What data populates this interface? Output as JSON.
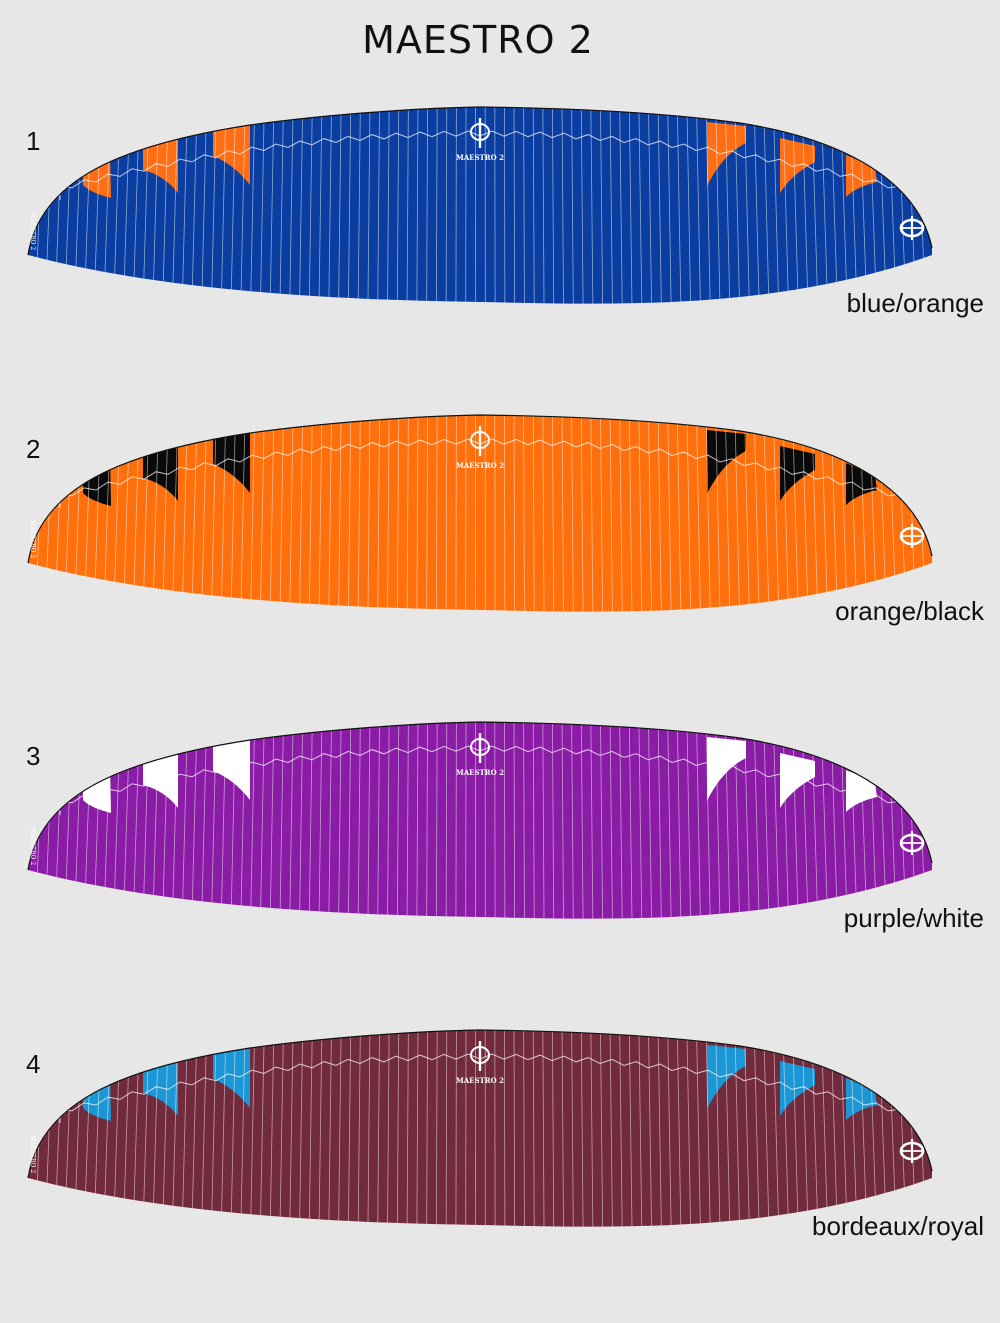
{
  "title": "MAESTRO 2",
  "logo_text": "MAESTRO 2",
  "variants": [
    {
      "number": "1",
      "name": "blue/orange",
      "main_color": "#0b3ea1",
      "accent_color": "#ff6e14"
    },
    {
      "number": "2",
      "name": "orange/black",
      "main_color": "#ff6f0c",
      "accent_color": "#0a0a0a"
    },
    {
      "number": "3",
      "name": "purple/white",
      "main_color": "#8b1ca6",
      "accent_color": "#ffffff"
    },
    {
      "number": "4",
      "name": "bordeaux/royal",
      "main_color": "#722b3c",
      "accent_color": "#1b97d6"
    }
  ]
}
